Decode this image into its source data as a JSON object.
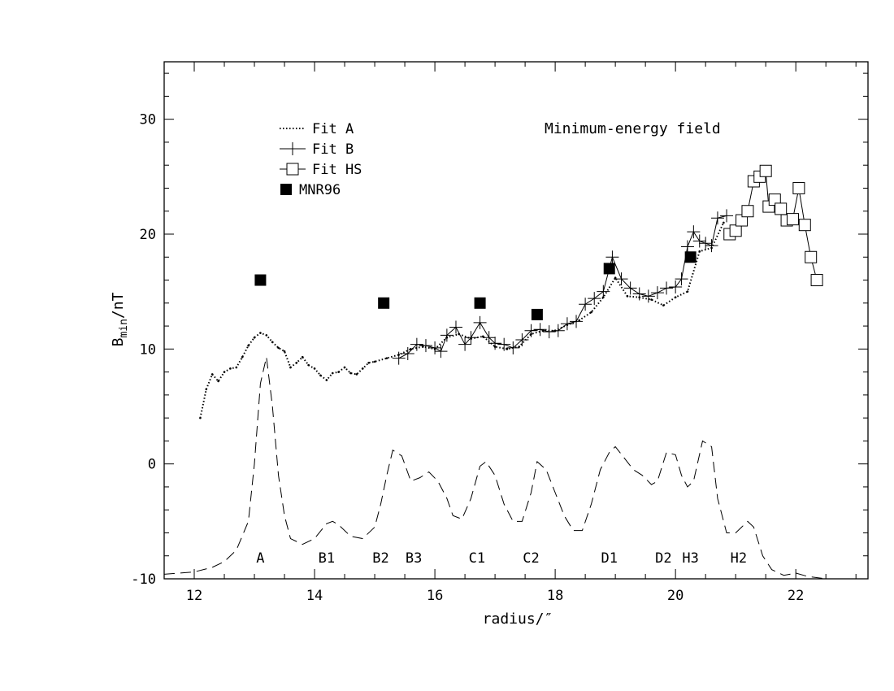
{
  "chart_data": {
    "type": "line",
    "annotation": "Minimum-energy field",
    "xlabel": "radius/″",
    "ylabel_main": "B",
    "ylabel_sub": "min",
    "ylabel_tail": "/nT",
    "xlim": [
      11.5,
      23.2
    ],
    "ylim": [
      -10,
      35
    ],
    "xticks": [
      12,
      14,
      16,
      18,
      20,
      22
    ],
    "yticks": [
      -10,
      0,
      10,
      20,
      30
    ],
    "grid": false,
    "legend_position": "top-left",
    "series": [
      {
        "name": "Fit A",
        "style": "dotted",
        "x": [
          12.1,
          12.2,
          12.3,
          12.4,
          12.5,
          12.6,
          12.7,
          12.8,
          12.9,
          13.0,
          13.1,
          13.2,
          13.3,
          13.4,
          13.5,
          13.6,
          13.7,
          13.8,
          13.9,
          14.0,
          14.1,
          14.2,
          14.3,
          14.4,
          14.5,
          14.6,
          14.7,
          14.8,
          14.9,
          15.0,
          15.2,
          15.4,
          15.6,
          15.8,
          16.0,
          16.2,
          16.4,
          16.6,
          16.8,
          17.0,
          17.2,
          17.4,
          17.6,
          17.8,
          18.0,
          18.2,
          18.4,
          18.6,
          18.8,
          19.0,
          19.2,
          19.4,
          19.6,
          19.8,
          20.0,
          20.2,
          20.4,
          20.6,
          20.8
        ],
        "y": [
          4,
          6.5,
          7.8,
          7.2,
          8.0,
          8.3,
          8.4,
          9.3,
          10.3,
          11.0,
          11.4,
          11.2,
          10.6,
          10.1,
          9.8,
          8.4,
          8.8,
          9.3,
          8.6,
          8.3,
          7.7,
          7.3,
          7.9,
          8.0,
          8.4,
          7.9,
          7.8,
          8.3,
          8.8,
          8.9,
          9.2,
          9.5,
          10.0,
          10.2,
          10.0,
          11.0,
          11.3,
          10.9,
          11.1,
          10.2,
          10.0,
          10.2,
          11.3,
          11.6,
          11.6,
          12.1,
          12.5,
          13.2,
          14.5,
          16.2,
          14.6,
          14.5,
          14.3,
          13.8,
          14.5,
          15.0,
          18.5,
          18.8,
          21.0
        ]
      },
      {
        "name": "Fit B",
        "style": "solid-plus",
        "x": [
          15.4,
          15.55,
          15.7,
          15.85,
          16.0,
          16.1,
          16.2,
          16.35,
          16.5,
          16.6,
          16.75,
          16.9,
          17.0,
          17.15,
          17.3,
          17.45,
          17.6,
          17.75,
          17.9,
          18.05,
          18.2,
          18.35,
          18.5,
          18.65,
          18.8,
          18.95,
          19.1,
          19.25,
          19.4,
          19.55,
          19.7,
          19.85,
          20.0,
          20.1,
          20.2,
          20.3,
          20.4,
          20.5,
          20.6,
          20.7,
          20.85
        ],
        "y": [
          9.2,
          9.6,
          10.4,
          10.3,
          10.1,
          9.8,
          11.2,
          11.9,
          10.4,
          11.0,
          12.3,
          11.0,
          10.5,
          10.4,
          10.1,
          10.8,
          11.6,
          11.7,
          11.5,
          11.6,
          12.2,
          12.4,
          13.9,
          14.4,
          15.0,
          18.0,
          16.1,
          15.3,
          14.8,
          14.6,
          14.9,
          15.3,
          15.4,
          16.1,
          18.9,
          20.2,
          19.4,
          19.2,
          19.0,
          21.4,
          21.6
        ]
      },
      {
        "name": "Fit HS",
        "style": "solid-open-square",
        "x": [
          20.9,
          21.0,
          21.1,
          21.2,
          21.3,
          21.4,
          21.5,
          21.55,
          21.65,
          21.75,
          21.85,
          21.95,
          22.05,
          22.15,
          22.25,
          22.35
        ],
        "y": [
          20.0,
          20.3,
          21.2,
          22.0,
          24.6,
          25.0,
          25.5,
          22.4,
          23.0,
          22.2,
          21.2,
          21.3,
          24.0,
          20.8,
          18.0,
          16.0
        ]
      },
      {
        "name": "MNR96",
        "style": "filled-square",
        "x": [
          13.1,
          15.15,
          16.75,
          17.7,
          18.9,
          20.25
        ],
        "y": [
          16.0,
          14.0,
          14.0,
          13.0,
          17.0,
          18.0
        ]
      },
      {
        "name": "",
        "style": "dashed",
        "x": [
          11.5,
          12.0,
          12.3,
          12.5,
          12.7,
          12.9,
          13.0,
          13.1,
          13.2,
          13.3,
          13.4,
          13.5,
          13.6,
          13.8,
          14.0,
          14.2,
          14.3,
          14.4,
          14.6,
          14.8,
          15.0,
          15.1,
          15.2,
          15.3,
          15.45,
          15.6,
          15.75,
          15.9,
          16.05,
          16.2,
          16.3,
          16.45,
          16.6,
          16.75,
          16.85,
          17.0,
          17.15,
          17.3,
          17.45,
          17.6,
          17.7,
          17.85,
          18.0,
          18.15,
          18.3,
          18.45,
          18.6,
          18.75,
          18.9,
          19.0,
          19.15,
          19.3,
          19.45,
          19.6,
          19.7,
          19.85,
          20.0,
          20.1,
          20.2,
          20.3,
          20.45,
          20.6,
          20.7,
          20.85,
          21.0,
          21.1,
          21.2,
          21.3,
          21.45,
          21.6,
          21.8,
          22.0,
          22.2,
          22.5,
          22.8,
          23.2
        ],
        "y": [
          -9.6,
          -9.4,
          -9,
          -8.5,
          -7.5,
          -5,
          0,
          7,
          9.3,
          5,
          -1,
          -4.5,
          -6.5,
          -7,
          -6.5,
          -5.2,
          -5,
          -5.3,
          -6.3,
          -6.5,
          -5.5,
          -3.5,
          -1,
          1.2,
          0.7,
          -1.5,
          -1.2,
          -0.7,
          -1.5,
          -3,
          -4.5,
          -4.8,
          -3,
          -0.2,
          0.2,
          -1,
          -3.5,
          -5,
          -5,
          -2.5,
          0.2,
          -0.5,
          -2.5,
          -4.5,
          -5.8,
          -5.8,
          -3.5,
          -0.5,
          1,
          1.5,
          0.5,
          -0.5,
          -1,
          -1.8,
          -1.5,
          1,
          0.8,
          -1,
          -2,
          -1.5,
          2,
          1.5,
          -3,
          -6,
          -6,
          -5.5,
          -5,
          -5.5,
          -8,
          -9.2,
          -9.7,
          -9.5,
          -9.8,
          -10,
          -10,
          -10
        ]
      }
    ],
    "labels": [
      {
        "text": "A",
        "x": 13.1
      },
      {
        "text": "B1",
        "x": 14.2
      },
      {
        "text": "B2",
        "x": 15.1
      },
      {
        "text": "B3",
        "x": 15.65
      },
      {
        "text": "C1",
        "x": 16.7
      },
      {
        "text": "C2",
        "x": 17.6
      },
      {
        "text": "D1",
        "x": 18.9
      },
      {
        "text": "D2",
        "x": 19.8
      },
      {
        "text": "H3",
        "x": 20.25
      },
      {
        "text": "H2",
        "x": 21.05
      }
    ]
  }
}
